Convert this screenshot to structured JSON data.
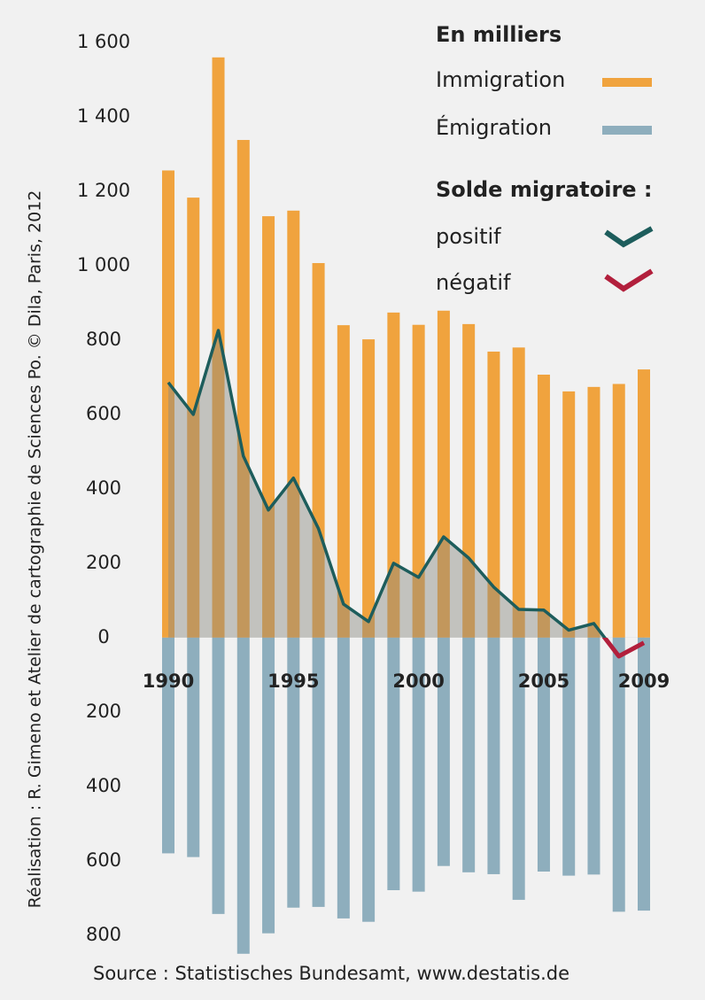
{
  "chart_data": {
    "type": "bar",
    "x": [
      1990,
      1991,
      1992,
      1993,
      1994,
      1995,
      1996,
      1997,
      1998,
      1999,
      2000,
      2001,
      2002,
      2003,
      2004,
      2005,
      2006,
      2007,
      2008,
      2009
    ],
    "xticks": [
      1990,
      1995,
      2000,
      2005,
      2009
    ],
    "ylim": [
      -860,
      1600
    ],
    "yticks": [
      {
        "value": 1600,
        "label": "1 600"
      },
      {
        "value": 1400,
        "label": "1 400"
      },
      {
        "value": 1200,
        "label": "1 200"
      },
      {
        "value": 1000,
        "label": "1 000"
      },
      800,
      600,
      400,
      200,
      0,
      {
        "value": -200,
        "label": "200"
      },
      {
        "value": -400,
        "label": "400"
      },
      {
        "value": -600,
        "label": "600"
      },
      {
        "value": -800,
        "label": "800"
      }
    ],
    "legend_title": "En milliers",
    "series": [
      {
        "name": "Immigration",
        "color": "#f0a33e",
        "values": [
          1256,
          1183,
          1560,
          1338,
          1133,
          1148,
          1007,
          840,
          802,
          874,
          841,
          879,
          843,
          769,
          780,
          707,
          662,
          674,
          682,
          721
        ]
      },
      {
        "name": "Émigration",
        "color": "#8eaebd",
        "values": [
          -580,
          -590,
          -743,
          -850,
          -795,
          -726,
          -724,
          -755,
          -764,
          -679,
          -683,
          -614,
          -631,
          -636,
          -705,
          -629,
          -640,
          -637,
          -737,
          -734
        ]
      }
    ],
    "balance": {
      "type": "line",
      "title": "Solde migratoire :",
      "values": [
        686,
        600,
        826,
        488,
        343,
        429,
        293,
        90,
        43,
        200,
        162,
        271,
        214,
        136,
        76,
        74,
        20,
        38,
        -50,
        -14
      ],
      "positive": {
        "name": "positif",
        "color": "#1d5d5c"
      },
      "negative": {
        "name": "négatif",
        "color": "#b21f3c"
      }
    },
    "credit": "Réalisation : R. Gimeno et Atelier de cartographie de Sciences Po. © Dila, Paris, 2012",
    "source": "Source :  Statistisches Bundesamt, www.destatis.de"
  }
}
